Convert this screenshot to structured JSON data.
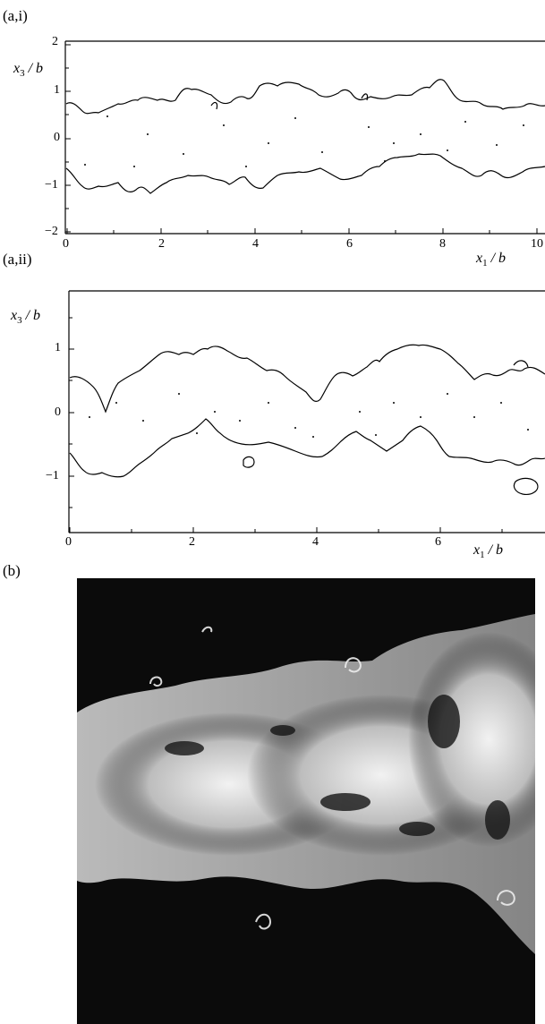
{
  "panels": [
    {
      "label": "(a,i)",
      "y_label": {
        "var": "x",
        "sub": "3",
        "tail": " / b"
      },
      "x_label": {
        "var": "x",
        "sub": "1",
        "tail": " / b"
      },
      "y_ticks": [
        "2",
        "1",
        "0",
        "−1",
        "−2"
      ],
      "x_ticks": [
        "0",
        "2",
        "4",
        "6",
        "8",
        "10"
      ]
    },
    {
      "label": "(a,ii)",
      "y_label": {
        "var": "x",
        "sub": "3",
        "tail": " / b"
      },
      "x_label": {
        "var": "x",
        "sub": "1",
        "tail": " / b"
      },
      "y_ticks": [
        "1",
        "0",
        "−1"
      ],
      "x_ticks": [
        "0",
        "2",
        "4",
        "6"
      ]
    },
    {
      "label": "(b)"
    }
  ],
  "colors": {
    "line": "#000000",
    "photo_bg": "#0b0b0b",
    "flow": "#e8e8e8"
  }
}
